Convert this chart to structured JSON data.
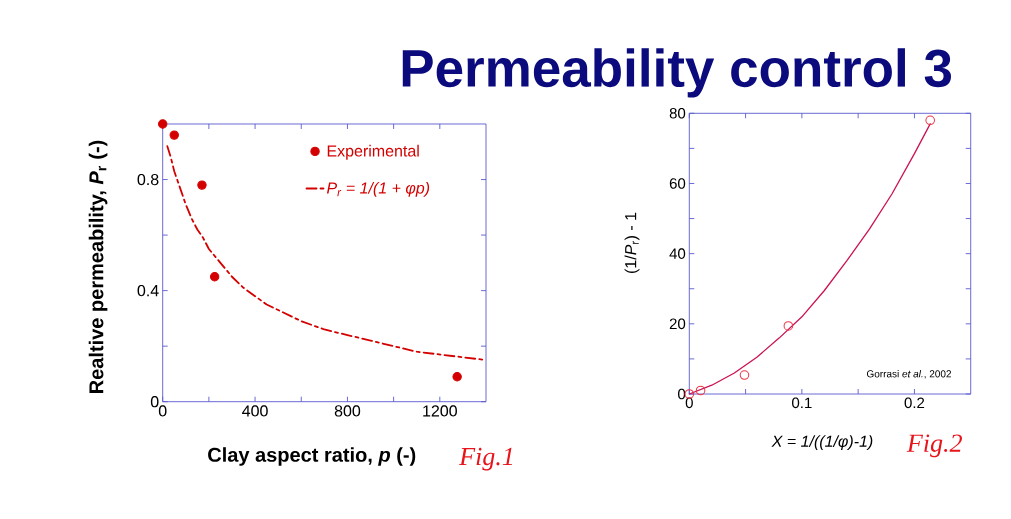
{
  "chart_data": [
    {
      "type": "scatter",
      "title": "Permeability control 3",
      "xlabel": "Clay aspect ratio, *p* (-)",
      "ylabel": "Realtive permeability, *P*$_{r}$ (-)",
      "annotations": [
        "Fig.1"
      ],
      "xlim": [
        0,
        1400
      ],
      "ylim": [
        0,
        1
      ],
      "xticks": [
        0,
        {
          "value": 200,
          "label": null
        },
        400,
        {
          "value": 600,
          "label": null
        },
        800,
        {
          "value": 1000,
          "label": null
        },
        1200
      ],
      "yticks": [
        0,
        {
          "value": 0.2,
          "label": null
        },
        0.4,
        {
          "value": 0.6,
          "label": null
        },
        0.8
      ],
      "marker": "circle",
      "legend": "top right",
      "series": [
        {
          "name": "Experimental",
          "type": "scatter",
          "color": "#d40000",
          "x": [
            0,
            50,
            170,
            225,
            1275
          ],
          "values": [
            1.0,
            0.96,
            0.78,
            0.45,
            0.09
          ]
        },
        {
          "name": "P$_{r}$ = 1/(1 + φp)",
          "type": "line",
          "color": "#d40000",
          "line_style": "dashed",
          "marker": "none",
          "x": [
            20,
            35,
            50,
            75,
            100,
            125,
            150,
            175,
            200,
            250,
            300,
            350,
            400,
            450,
            500,
            600,
            700,
            800,
            900,
            1000,
            1100,
            1200,
            1300,
            1400
          ],
          "values": [
            0.92,
            0.88,
            0.83,
            0.77,
            0.71,
            0.66,
            0.62,
            0.59,
            0.55,
            0.5,
            0.45,
            0.41,
            0.38,
            0.35,
            0.33,
            0.29,
            0.26,
            0.24,
            0.22,
            0.2,
            0.18,
            0.17,
            0.16,
            0.15
          ]
        }
      ]
    },
    {
      "type": "scatter",
      "xlabel": "X = 1/((1/φ)-1)",
      "ylabel": "(1/*P*$_{r}$) - 1",
      "annotations": [
        "Gorrasi *et al.*, 2002",
        "Fig.2"
      ],
      "xlim": [
        0,
        0.25
      ],
      "ylim": [
        0,
        80
      ],
      "xticks": [
        0,
        {
          "value": 0.05,
          "label": null
        },
        0.1,
        {
          "value": 0.15,
          "label": null
        },
        0.2
      ],
      "yticks": [
        0,
        {
          "value": 10,
          "label": null
        },
        20,
        {
          "value": 30,
          "label": null
        },
        40,
        {
          "value": 50,
          "label": null
        },
        60,
        {
          "value": 70,
          "label": null
        },
        80
      ],
      "marker": "circle",
      "series": [
        {
          "type": "scatter",
          "color": "#ee3344",
          "x": [
            0,
            0.01,
            0.049,
            0.088,
            0.214
          ],
          "values": [
            0,
            1,
            5.4,
            19.4,
            78
          ]
        },
        {
          "type": "line",
          "color": "#cc1155",
          "line_style": "solid",
          "marker": "none",
          "x": [
            0,
            0.02,
            0.04,
            0.06,
            0.08,
            0.1,
            0.12,
            0.14,
            0.16,
            0.18,
            0.2,
            0.214
          ],
          "values": [
            0,
            2.5,
            6,
            10.5,
            16,
            22,
            29.5,
            38,
            47,
            57,
            68.5,
            77
          ]
        }
      ]
    }
  ]
}
